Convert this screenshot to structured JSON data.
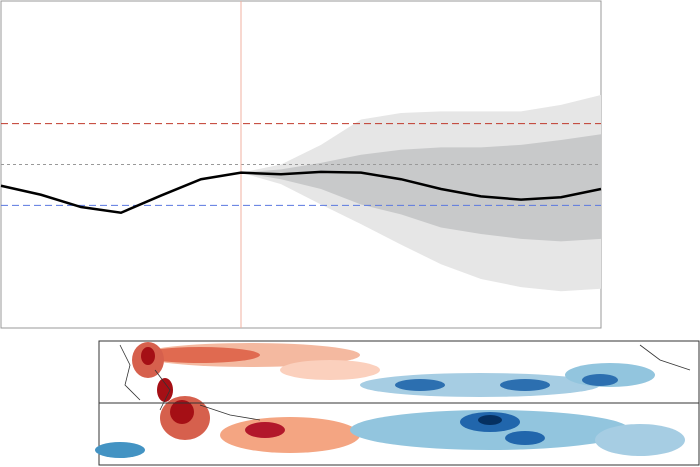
{
  "chart_data": {
    "type": "line",
    "categories": [
      null,
      null,
      null,
      null,
      null,
      null,
      null,
      null,
      null,
      null,
      null,
      null,
      null,
      null,
      null,
      null
    ],
    "ylim": [
      -2,
      2
    ],
    "vline": 6,
    "vline_color": "#f0b0a0",
    "hlines": [
      {
        "value": 0.5,
        "color": "#c0392b",
        "style": "dashed"
      },
      {
        "value": 0,
        "color": "#999999",
        "style": "dotted"
      },
      {
        "value": -0.5,
        "color": "#5a78e0",
        "style": "dashed"
      }
    ],
    "bands": [
      {
        "color": "#e6e6e6",
        "upper": [
          null,
          null,
          null,
          null,
          null,
          null,
          -0.1,
          0,
          0.24,
          0.55,
          0.63,
          0.65,
          0.65,
          0.65,
          0.73,
          0.85
        ],
        "lower": [
          null,
          null,
          null,
          null,
          null,
          null,
          -0.1,
          -0.24,
          -0.49,
          -0.73,
          -0.98,
          -1.22,
          -1.4,
          -1.5,
          -1.55,
          -1.52
        ]
      },
      {
        "color": "#c8c9ca",
        "upper": [
          null,
          null,
          null,
          null,
          null,
          null,
          -0.1,
          -0.06,
          0.02,
          0.12,
          0.18,
          0.21,
          0.21,
          0.24,
          0.3,
          0.37
        ],
        "lower": [
          null,
          null,
          null,
          null,
          null,
          null,
          -0.1,
          -0.18,
          -0.3,
          -0.49,
          -0.61,
          -0.77,
          -0.85,
          -0.91,
          -0.94,
          -0.91
        ]
      }
    ],
    "series": [
      {
        "color": "#000000",
        "values": [
          -0.26,
          -0.37,
          -0.52,
          -0.59,
          -0.38,
          -0.18,
          -0.1,
          -0.12,
          -0.09,
          -0.1,
          -0.18,
          -0.3,
          -0.39,
          -0.43,
          -0.4,
          -0.3
        ]
      }
    ]
  }
}
